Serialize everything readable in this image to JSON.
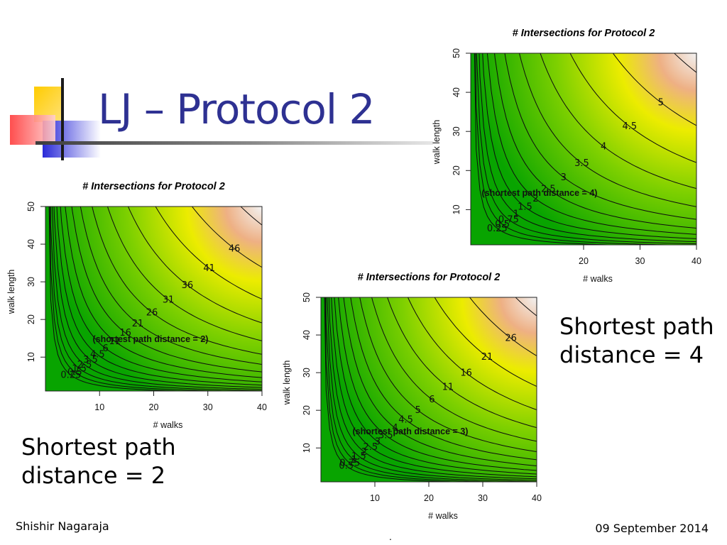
{
  "slide": {
    "title": "LJ – Protocol 2",
    "footer_left": "Shishir Nagaraja",
    "footer_right": "09 September 2014",
    "footer_center": "."
  },
  "captions": [
    {
      "lines": [
        "Shortest path",
        "distance = 4"
      ]
    },
    {
      "lines": [
        "Shortest path",
        "distance = 2"
      ]
    }
  ],
  "colors": {
    "title": "#2e3192",
    "surface_low": "#08a400",
    "surface_mid": "#7ed000",
    "surface_yellow": "#ecec00",
    "surface_high": "#f2f2f2"
  },
  "chart_data": [
    {
      "type": "heatmap",
      "title": "# Intersections for Protocol 2",
      "xlabel": "# walks",
      "ylabel": "walk length",
      "xticks": [
        20,
        30,
        40
      ],
      "yticks": [
        10,
        20,
        30,
        40,
        50
      ],
      "xlim": [
        0,
        40
      ],
      "ylim": [
        1,
        50
      ],
      "annotation": "(shortest path distance = 4)",
      "contour_levels": [
        0.25,
        0.5,
        0.75,
        1,
        1.5,
        2,
        2.5,
        3,
        3.5,
        4,
        4.5,
        5,
        6
      ],
      "legend": "none",
      "grid": false
    },
    {
      "type": "heatmap",
      "title": "# Intersections for Protocol 2",
      "xlabel": "# walks",
      "ylabel": "walk length",
      "xticks": [
        10,
        20,
        30,
        40
      ],
      "yticks": [
        10,
        20,
        30,
        40,
        50
      ],
      "xlim": [
        0,
        40
      ],
      "ylim": [
        1,
        50
      ],
      "annotation": "(shortest path distance = 2)",
      "contour_levels": [
        0.25,
        0.5,
        1.5,
        2.5,
        3.5,
        4.5,
        6,
        11,
        16,
        21,
        26,
        31,
        36,
        41,
        46,
        51
      ],
      "legend": "none",
      "grid": false
    },
    {
      "type": "heatmap",
      "title": "# Intersections for Protocol 2",
      "xlabel": "# walks",
      "ylabel": "walk length",
      "xticks": [
        10,
        20,
        30,
        40
      ],
      "yticks": [
        10,
        20,
        30,
        40,
        50
      ],
      "xlim": [
        0,
        40
      ],
      "ylim": [
        1,
        50
      ],
      "annotation": "(shortest path distance = 3)",
      "contour_levels": [
        0.5,
        0.75,
        1,
        1.5,
        2,
        2.5,
        3,
        3.5,
        4,
        4.5,
        5,
        6,
        11,
        16,
        21,
        26,
        31
      ],
      "legend": "none",
      "grid": false
    }
  ]
}
